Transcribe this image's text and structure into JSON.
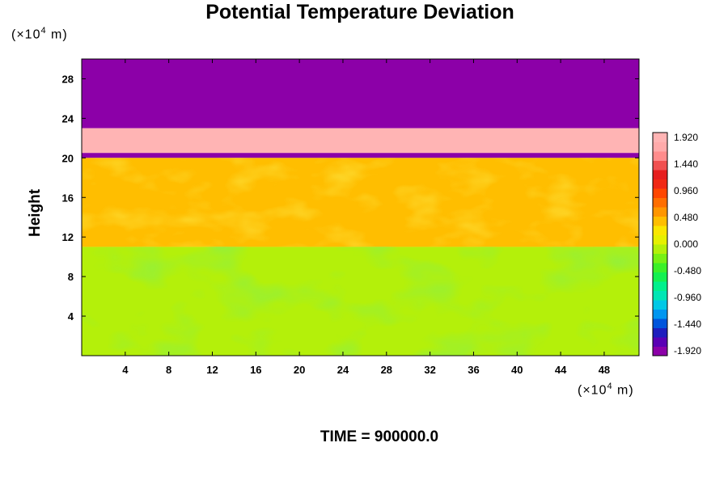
{
  "chart_data": {
    "type": "heatmap",
    "title": "Potential Temperature Deviation",
    "ylabel": "Height",
    "y_unit": {
      "prefix": "(×10",
      "exp": "4",
      "suffix": " m)"
    },
    "x_unit": {
      "prefix": "(×10",
      "exp": "4",
      "suffix": " m)"
    },
    "footer": "TIME = 900000.0",
    "xlim": [
      0,
      51.2
    ],
    "ylim": [
      0,
      30
    ],
    "x_ticks": [
      4,
      8,
      12,
      16,
      20,
      24,
      28,
      32,
      36,
      40,
      44,
      48
    ],
    "y_ticks": [
      4,
      8,
      12,
      16,
      20,
      24,
      28
    ],
    "colorbar": {
      "range": [
        -1.92,
        1.92
      ],
      "labels": [
        "1.920",
        "1.440",
        "0.960",
        "0.480",
        "0.000",
        "-0.480",
        "-0.960",
        "-1.440",
        "-1.920"
      ],
      "colors": [
        "#8c00a8",
        "#5a00b4",
        "#1e1ebe",
        "#0055dc",
        "#0096f0",
        "#00c8e6",
        "#00e6b4",
        "#00f08c",
        "#14f050",
        "#3cf028",
        "#78f014",
        "#b4f00a",
        "#e6f000",
        "#fae600",
        "#ffbe00",
        "#ff9600",
        "#ff6e00",
        "#ff4600",
        "#f02814",
        "#e61e1e",
        "#f05050",
        "#ff8c8c",
        "#ffaaaa",
        "#ffb4b4"
      ]
    },
    "layers": [
      {
        "name": "upper",
        "y_range": [
          23,
          30
        ],
        "value": -1.92
      },
      {
        "name": "warm band",
        "y_range": [
          20.5,
          23
        ],
        "value": 1.92
      },
      {
        "name": "cold strip",
        "y_range": [
          20,
          20.5
        ],
        "value": -1.92
      },
      {
        "name": "middle",
        "y_range": [
          11,
          20
        ],
        "value": 0.4
      },
      {
        "name": "lower",
        "y_range": [
          0,
          11
        ],
        "value": -0.1
      }
    ]
  }
}
